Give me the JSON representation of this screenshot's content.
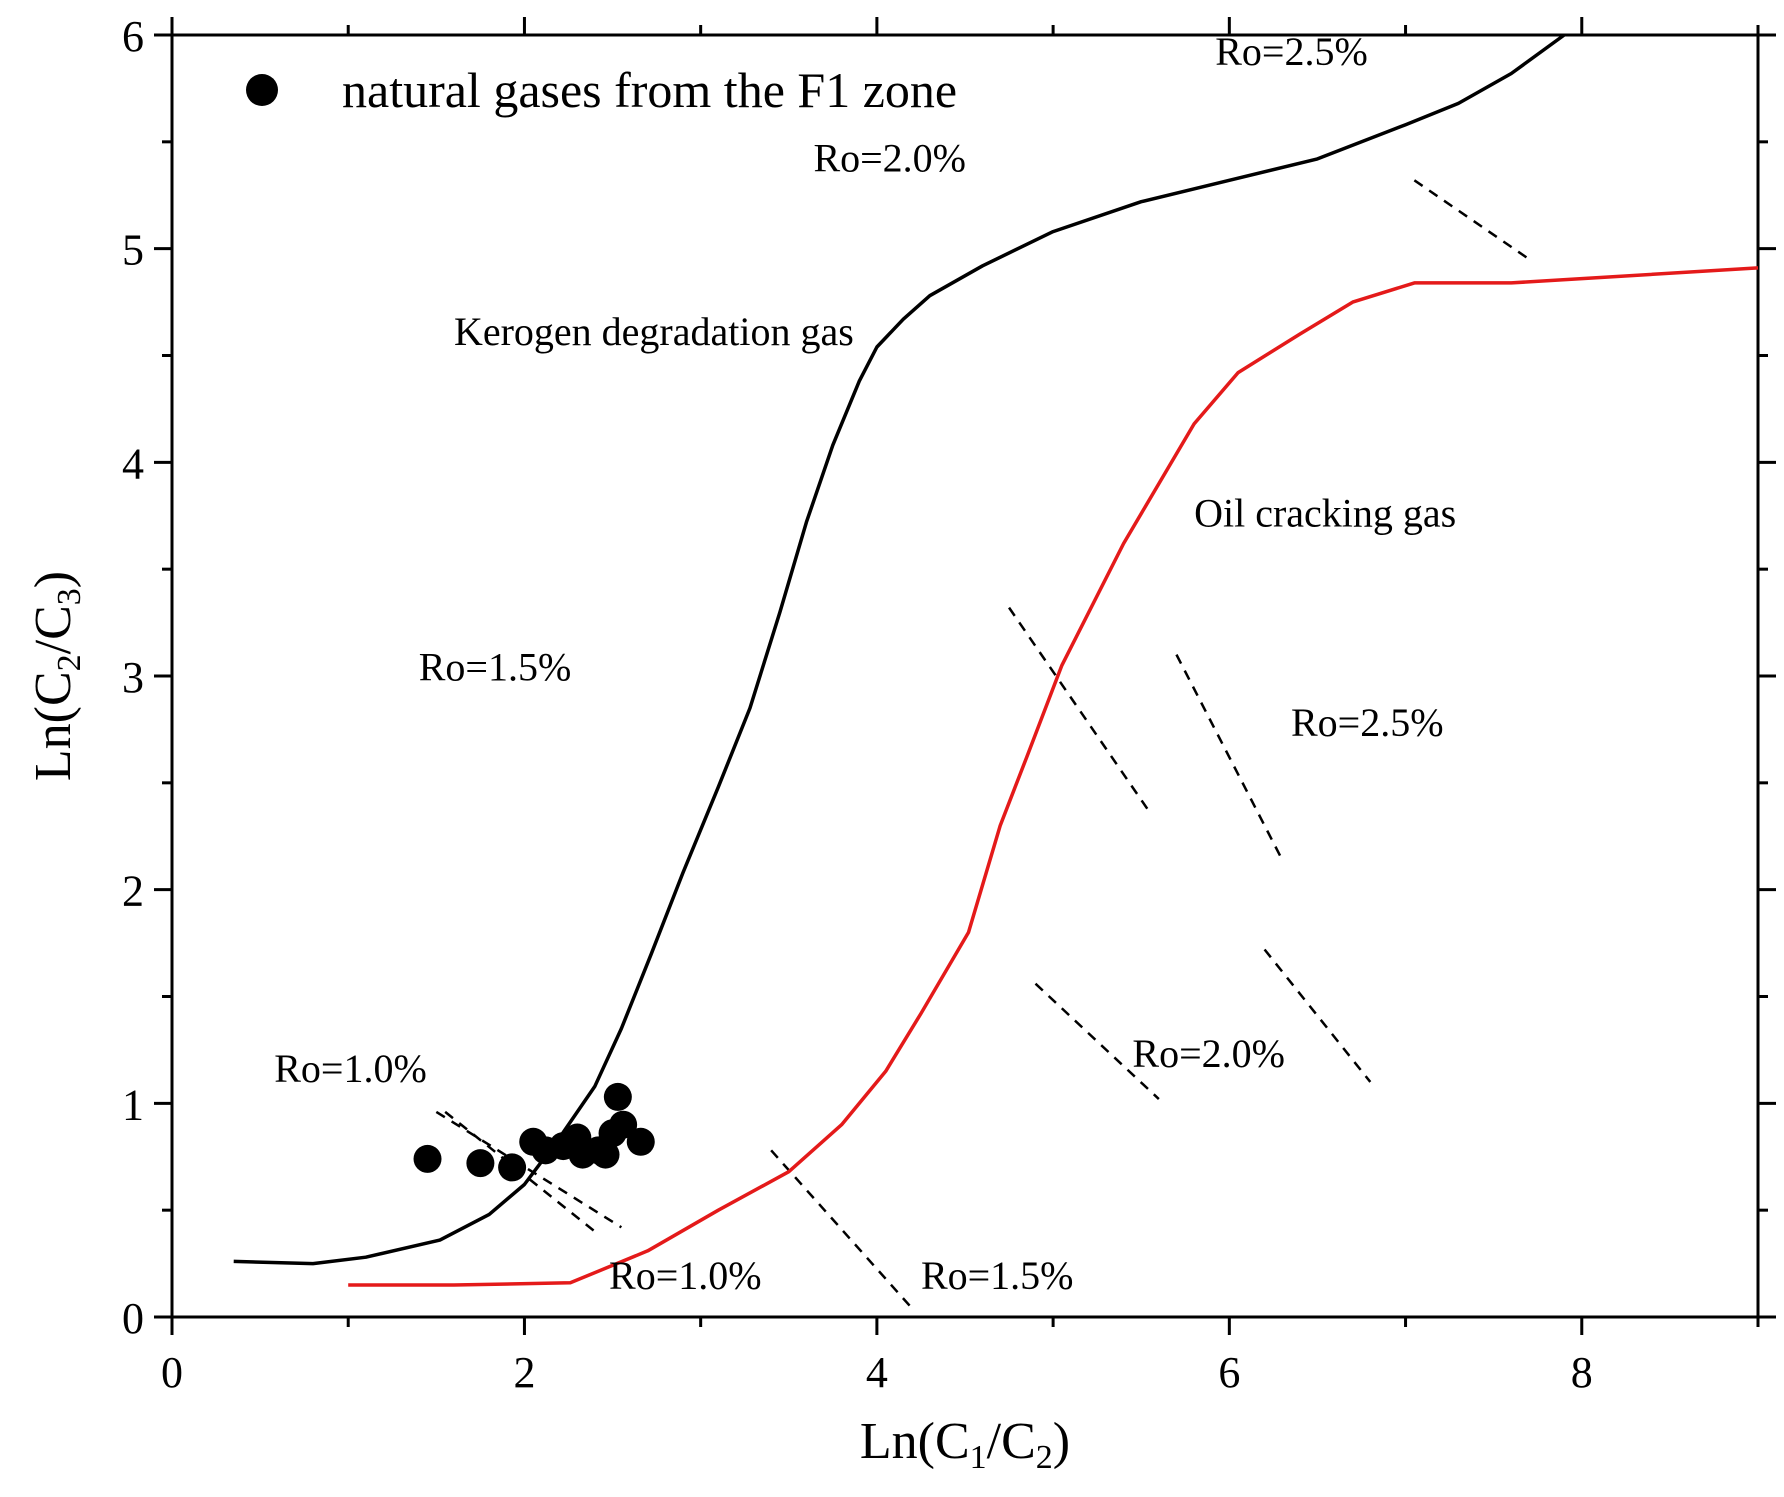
{
  "chart_data": {
    "type": "scatter",
    "title": "",
    "xlabel": {
      "prefix": "Ln(C",
      "sub1": "1",
      "mid": "/C",
      "sub2": "2",
      "suffix": ")"
    },
    "ylabel": {
      "prefix": "Ln(C",
      "sub1": "2",
      "mid": "/C",
      "sub2": "3",
      "suffix": ")"
    },
    "xlim": [
      0,
      9
    ],
    "ylim": [
      0,
      6
    ],
    "xticks": [
      "0",
      "2",
      "4",
      "6",
      "8"
    ],
    "yticks": [
      "0",
      "1",
      "2",
      "3",
      "4",
      "5",
      "6"
    ],
    "grid": false,
    "legend": {
      "position": "top-left",
      "entries": [
        "natural gases from the F1 zone"
      ]
    },
    "series": [
      {
        "name": "natural gases from the F1 zone",
        "kind": "scatter",
        "color": "#000000",
        "points": [
          [
            1.45,
            0.74
          ],
          [
            1.75,
            0.72
          ],
          [
            1.93,
            0.7
          ],
          [
            2.05,
            0.82
          ],
          [
            2.12,
            0.78
          ],
          [
            2.22,
            0.8
          ],
          [
            2.3,
            0.84
          ],
          [
            2.33,
            0.76
          ],
          [
            2.42,
            0.78
          ],
          [
            2.46,
            0.76
          ],
          [
            2.5,
            0.86
          ],
          [
            2.53,
            1.03
          ],
          [
            2.56,
            0.9
          ],
          [
            2.66,
            0.82
          ]
        ]
      },
      {
        "name": "Kerogen degradation gas",
        "kind": "line",
        "color": "#000000",
        "points": [
          [
            0.35,
            0.26
          ],
          [
            0.8,
            0.25
          ],
          [
            1.1,
            0.28
          ],
          [
            1.52,
            0.36
          ],
          [
            1.8,
            0.48
          ],
          [
            2.0,
            0.62
          ],
          [
            2.2,
            0.84
          ],
          [
            2.4,
            1.08
          ],
          [
            2.55,
            1.35
          ],
          [
            2.72,
            1.7
          ],
          [
            2.9,
            2.08
          ],
          [
            3.1,
            2.48
          ],
          [
            3.28,
            2.85
          ],
          [
            3.45,
            3.3
          ],
          [
            3.6,
            3.72
          ],
          [
            3.75,
            4.08
          ],
          [
            3.9,
            4.38
          ],
          [
            4.0,
            4.54
          ],
          [
            4.15,
            4.67
          ],
          [
            4.3,
            4.78
          ],
          [
            4.6,
            4.92
          ],
          [
            5.0,
            5.08
          ],
          [
            5.5,
            5.22
          ],
          [
            6.0,
            5.32
          ],
          [
            6.5,
            5.42
          ],
          [
            7.0,
            5.58
          ],
          [
            7.3,
            5.68
          ],
          [
            7.6,
            5.82
          ],
          [
            7.9,
            6.0
          ]
        ]
      },
      {
        "name": "Oil cracking gas",
        "kind": "line",
        "color": "#e41a1a",
        "points": [
          [
            1.0,
            0.15
          ],
          [
            1.6,
            0.15
          ],
          [
            2.26,
            0.16
          ],
          [
            2.7,
            0.31
          ],
          [
            3.1,
            0.5
          ],
          [
            3.5,
            0.68
          ],
          [
            3.8,
            0.9
          ],
          [
            4.05,
            1.15
          ],
          [
            4.25,
            1.42
          ],
          [
            4.52,
            1.8
          ],
          [
            4.7,
            2.3
          ],
          [
            4.85,
            2.62
          ],
          [
            5.05,
            3.05
          ],
          [
            5.4,
            3.62
          ],
          [
            5.8,
            4.18
          ],
          [
            6.05,
            4.42
          ],
          [
            6.4,
            4.6
          ],
          [
            6.7,
            4.75
          ],
          [
            7.05,
            4.84
          ],
          [
            7.6,
            4.84
          ],
          [
            8.0,
            4.86
          ],
          [
            9.0,
            4.91
          ]
        ]
      }
    ],
    "iso_lines": [
      {
        "points": [
          [
            1.55,
            0.96
          ],
          [
            2.4,
            0.4
          ]
        ]
      },
      {
        "points": [
          [
            1.5,
            0.96
          ],
          [
            2.55,
            0.42
          ]
        ]
      },
      {
        "points": [
          [
            3.4,
            0.78
          ],
          [
            4.2,
            0.04
          ]
        ]
      },
      {
        "points": [
          [
            4.9,
            1.56
          ],
          [
            5.6,
            1.02
          ]
        ]
      },
      {
        "points": [
          [
            4.75,
            3.32
          ],
          [
            5.55,
            2.36
          ]
        ]
      },
      {
        "points": [
          [
            5.7,
            3.1
          ],
          [
            6.3,
            2.14
          ]
        ]
      },
      {
        "points": [
          [
            6.2,
            1.72
          ],
          [
            6.8,
            1.1
          ]
        ]
      },
      {
        "points": [
          [
            7.05,
            5.32
          ],
          [
            7.72,
            4.94
          ]
        ]
      }
    ],
    "annotations": [
      {
        "text": "Ro=1.0%",
        "x": 0.58,
        "y": 1.1
      },
      {
        "text": "Ro=1.0%",
        "x": 2.48,
        "y": 0.13
      },
      {
        "text": "Ro=1.5%",
        "x": 1.4,
        "y": 2.98
      },
      {
        "text": "Ro=1.5%",
        "x": 4.25,
        "y": 0.13
      },
      {
        "text": "Ro=2.0%",
        "x": 3.64,
        "y": 5.36
      },
      {
        "text": "Ro=2.0%",
        "x": 5.45,
        "y": 1.17
      },
      {
        "text": "Ro=2.5%",
        "x": 5.92,
        "y": 5.86
      },
      {
        "text": "Ro=2.5%",
        "x": 6.35,
        "y": 2.72
      },
      {
        "text": "Kerogen degradation gas",
        "x": 1.6,
        "y": 4.55
      },
      {
        "text": "Oil cracking gas",
        "x": 5.8,
        "y": 3.7
      }
    ]
  }
}
